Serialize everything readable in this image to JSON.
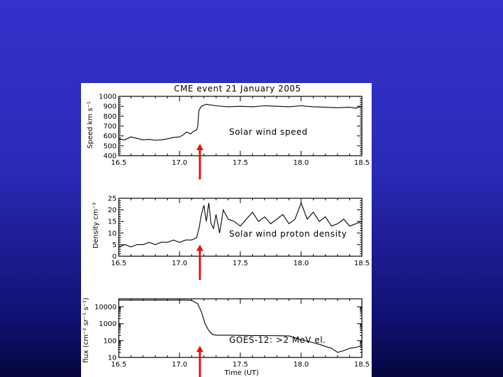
{
  "background": {
    "top_color": "#3333cc",
    "bottom_color": "#060640"
  },
  "figure": {
    "title": "CME event 21 January 2005",
    "arrow_color": "#e8140a"
  },
  "chart_data": [
    {
      "type": "line",
      "title": "CME event 21 January 2005",
      "ylabel": "Speed km s⁻¹",
      "annotation": "Solar wind speed",
      "xlim": [
        16.5,
        18.5
      ],
      "ylim": [
        400,
        1000
      ],
      "xticks": [
        16.5,
        17.0,
        17.5,
        18.0,
        18.5
      ],
      "xtick_labels": [
        "16.5",
        "17.0",
        "17.5",
        "18.0",
        "18.5"
      ],
      "yticks": [
        400,
        500,
        600,
        700,
        800,
        900,
        1000
      ],
      "ytick_labels": [
        "400",
        "500",
        "600",
        "700",
        "800",
        "900",
        "1000"
      ],
      "grid": false,
      "event_marker_x": 17.15,
      "series": [
        {
          "x": [
            16.5,
            16.55,
            16.6,
            16.65,
            16.7,
            16.75,
            16.8,
            16.85,
            16.9,
            16.95,
            17.0,
            17.03,
            17.06,
            17.09,
            17.12,
            17.14,
            17.15,
            17.16,
            17.18,
            17.22,
            17.3,
            17.4,
            17.5,
            17.6,
            17.7,
            17.8,
            17.9,
            18.0,
            18.1,
            18.2,
            18.3,
            18.4,
            18.45,
            18.5
          ],
          "y": [
            570,
            560,
            590,
            575,
            560,
            565,
            555,
            560,
            570,
            585,
            590,
            610,
            640,
            620,
            650,
            660,
            700,
            860,
            900,
            920,
            905,
            895,
            900,
            895,
            905,
            900,
            895,
            905,
            895,
            890,
            885,
            890,
            880,
            900
          ]
        }
      ]
    },
    {
      "type": "line",
      "ylabel": "Density cm⁻³",
      "annotation": "Solar wind proton density",
      "xlim": [
        16.5,
        18.5
      ],
      "ylim": [
        0,
        25
      ],
      "xticks": [
        16.5,
        17.0,
        17.5,
        18.0,
        18.5
      ],
      "xtick_labels": [
        "16.5",
        "17.0",
        "17.5",
        "18.0",
        "18.5"
      ],
      "yticks": [
        0,
        5,
        10,
        15,
        20,
        25
      ],
      "ytick_labels": [
        "0",
        "5",
        "10",
        "15",
        "20",
        "25"
      ],
      "grid": false,
      "event_marker_x": 17.15,
      "series": [
        {
          "x": [
            16.5,
            16.55,
            16.6,
            16.65,
            16.7,
            16.75,
            16.8,
            16.85,
            16.9,
            16.95,
            17.0,
            17.05,
            17.1,
            17.14,
            17.16,
            17.18,
            17.2,
            17.22,
            17.24,
            17.26,
            17.28,
            17.3,
            17.33,
            17.36,
            17.4,
            17.45,
            17.5,
            17.55,
            17.6,
            17.65,
            17.7,
            17.75,
            17.8,
            17.85,
            17.9,
            17.95,
            18.0,
            18.05,
            18.1,
            18.15,
            18.2,
            18.25,
            18.3,
            18.35,
            18.4,
            18.45,
            18.5
          ],
          "y": [
            4,
            5,
            4,
            5,
            5,
            6,
            5,
            6,
            6,
            7,
            6,
            7,
            7,
            8,
            12,
            18,
            22,
            15,
            23,
            14,
            12,
            18,
            10,
            20,
            16,
            15,
            13,
            16,
            19,
            15,
            17,
            14,
            16,
            18,
            14,
            16,
            23,
            16,
            19,
            15,
            17,
            13,
            14,
            16,
            13,
            14,
            15
          ]
        }
      ]
    },
    {
      "type": "line",
      "ylabel": "flux (cm⁻² sr⁻¹ s⁻¹)",
      "xlabel": "Time (UT)",
      "annotation": "GOES-12: >2 MeV el.",
      "yscale": "log",
      "xlim": [
        16.5,
        18.5
      ],
      "ylim": [
        10,
        30000
      ],
      "xticks": [
        16.5,
        17.0,
        17.5,
        18.0,
        18.5
      ],
      "xtick_labels": [
        "16.5",
        "17.0",
        "17.5",
        "18.0",
        "18.5"
      ],
      "yticks": [
        10,
        100,
        1000,
        10000
      ],
      "ytick_labels": [
        "10",
        "100",
        "1000",
        "10000"
      ],
      "grid": false,
      "event_marker_x": 17.15,
      "series": [
        {
          "x": [
            16.5,
            16.6,
            16.7,
            16.8,
            16.9,
            17.0,
            17.05,
            17.1,
            17.15,
            17.18,
            17.21,
            17.24,
            17.27,
            17.3,
            17.4,
            17.5,
            17.6,
            17.7,
            17.8,
            17.9,
            18.0,
            18.05,
            18.1,
            18.15,
            18.2,
            18.25,
            18.3,
            18.35,
            18.4,
            18.45,
            18.5
          ],
          "y": [
            25000,
            25000,
            25000,
            25000,
            25000,
            25000,
            25000,
            24000,
            15000,
            5000,
            1000,
            400,
            230,
            210,
            210,
            205,
            200,
            200,
            195,
            190,
            110,
            90,
            75,
            60,
            45,
            35,
            20,
            25,
            35,
            40,
            50
          ]
        }
      ]
    }
  ]
}
